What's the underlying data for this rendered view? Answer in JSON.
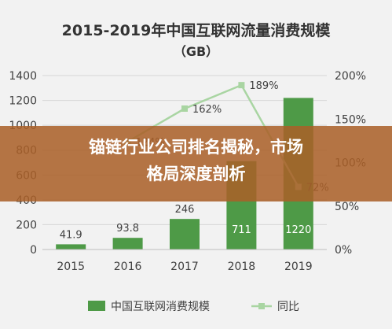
{
  "chart_data": {
    "type": "bar",
    "title": "2015-2019年中国互联网流量消费规模",
    "subtitle": "（GB）",
    "categories": [
      "2015",
      "2016",
      "2017",
      "2018",
      "2019"
    ],
    "series": [
      {
        "name": "中国互联网消费规模",
        "type": "bar",
        "axis": "left",
        "values": [
          41.9,
          93.8,
          246,
          711,
          1220
        ],
        "labels": [
          "41.9",
          "93.8",
          "246",
          "711",
          "1220"
        ]
      },
      {
        "name": "同比",
        "type": "line",
        "axis": "right",
        "x": [
          "2016",
          "2017",
          "2018",
          "2019"
        ],
        "values": [
          124,
          162,
          189,
          72
        ],
        "labels": [
          "124%",
          "162%",
          "189%",
          "72%"
        ]
      }
    ],
    "y_left": {
      "ticks": [
        "0",
        "200",
        "400",
        "600",
        "800",
        "1000",
        "1200",
        "1400"
      ],
      "lim": [
        0,
        1400
      ]
    },
    "y_right": {
      "ticks": [
        "0%",
        "50%",
        "100%",
        "150%",
        "200%"
      ],
      "lim": [
        0,
        200
      ]
    },
    "grid": true,
    "legend": "bottom"
  },
  "overlay": {
    "line1": "锚链行业公司排名揭秘，市场",
    "line2": "格局深度剖析"
  },
  "colors": {
    "bar": "#4e9a47",
    "line": "#a9d5a2",
    "overlay": "#aa5f28",
    "text": "#404040"
  }
}
